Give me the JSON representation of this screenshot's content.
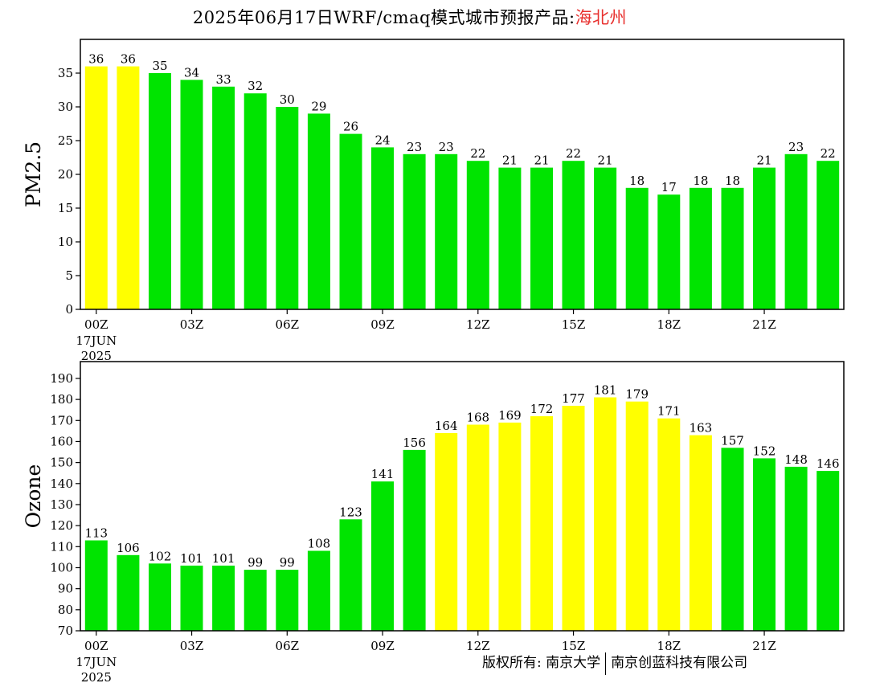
{
  "title": {
    "prefix": "2025年06月17日WRF/cmaq模式城市预报产品:",
    "location": "海北州"
  },
  "footer": {
    "left": "版权所有: 南京大学",
    "right": "南京创蓝科技有限公司"
  },
  "colors": {
    "green": "#00e400",
    "yellow": "#ffff00"
  },
  "chart_data": [
    {
      "type": "bar",
      "ylabel": "PM2.5",
      "ylim": [
        0,
        40
      ],
      "yticks": [
        0,
        5,
        10,
        15,
        20,
        25,
        30,
        35
      ],
      "categories": [
        "00Z",
        "01Z",
        "02Z",
        "03Z",
        "04Z",
        "05Z",
        "06Z",
        "07Z",
        "08Z",
        "09Z",
        "10Z",
        "11Z",
        "12Z",
        "13Z",
        "14Z",
        "15Z",
        "16Z",
        "17Z",
        "18Z",
        "19Z",
        "20Z",
        "21Z",
        "22Z",
        "23Z"
      ],
      "x_tick_labels": [
        "00Z",
        "03Z",
        "06Z",
        "09Z",
        "12Z",
        "15Z",
        "18Z",
        "21Z"
      ],
      "x_date_label": [
        "17JUN",
        "2025"
      ],
      "values": [
        36,
        36,
        35,
        34,
        33,
        32,
        30,
        29,
        26,
        24,
        23,
        23,
        22,
        21,
        21,
        22,
        21,
        18,
        17,
        18,
        18,
        21,
        23,
        22
      ],
      "bar_colors": [
        "yellow",
        "yellow",
        "green",
        "green",
        "green",
        "green",
        "green",
        "green",
        "green",
        "green",
        "green",
        "green",
        "green",
        "green",
        "green",
        "green",
        "green",
        "green",
        "green",
        "green",
        "green",
        "green",
        "green",
        "green"
      ]
    },
    {
      "type": "bar",
      "ylabel": "Ozone",
      "ylim": [
        70,
        198
      ],
      "yticks": [
        70,
        80,
        90,
        100,
        110,
        120,
        130,
        140,
        150,
        160,
        170,
        180,
        190
      ],
      "categories": [
        "00Z",
        "01Z",
        "02Z",
        "03Z",
        "04Z",
        "05Z",
        "06Z",
        "07Z",
        "08Z",
        "09Z",
        "10Z",
        "11Z",
        "12Z",
        "13Z",
        "14Z",
        "15Z",
        "16Z",
        "17Z",
        "18Z",
        "19Z",
        "20Z",
        "21Z",
        "22Z",
        "23Z"
      ],
      "x_tick_labels": [
        "00Z",
        "03Z",
        "06Z",
        "09Z",
        "12Z",
        "15Z",
        "18Z",
        "21Z"
      ],
      "x_date_label": [
        "17JUN",
        "2025"
      ],
      "values": [
        113,
        106,
        102,
        101,
        101,
        99,
        99,
        108,
        123,
        141,
        156,
        164,
        168,
        169,
        172,
        177,
        181,
        179,
        171,
        163,
        157,
        152,
        148,
        146
      ],
      "bar_colors": [
        "green",
        "green",
        "green",
        "green",
        "green",
        "green",
        "green",
        "green",
        "green",
        "green",
        "green",
        "yellow",
        "yellow",
        "yellow",
        "yellow",
        "yellow",
        "yellow",
        "yellow",
        "yellow",
        "yellow",
        "green",
        "green",
        "green",
        "green"
      ]
    }
  ]
}
